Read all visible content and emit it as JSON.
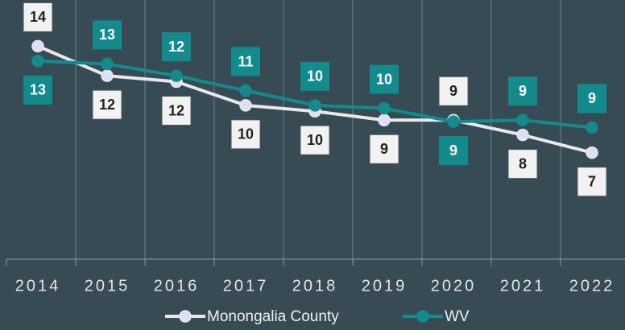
{
  "chart_data": {
    "type": "line",
    "categories": [
      "2014",
      "2015",
      "2016",
      "2017",
      "2018",
      "2019",
      "2020",
      "2021",
      "2022"
    ],
    "series": [
      {
        "name": "Monongalia County",
        "color": "#e8e8e8",
        "marker_color": "#dcdff5",
        "values": [
          14.4,
          12.4,
          12.0,
          10.4,
          10.0,
          9.4,
          9.4,
          8.4,
          7.2
        ],
        "value_labels": [
          "14",
          "12",
          "12",
          "10",
          "10",
          "9",
          "9",
          "8",
          "7"
        ]
      },
      {
        "name": "WV",
        "color": "#138a8c",
        "marker_color": "#138a8c",
        "values": [
          13.4,
          13.2,
          12.4,
          11.4,
          10.4,
          10.2,
          9.3,
          9.4,
          8.9
        ],
        "value_labels": [
          "13",
          "13",
          "12",
          "11",
          "10",
          "10",
          "9",
          "9",
          "9"
        ]
      }
    ],
    "ylim": [
      0,
      16
    ],
    "grid": true,
    "legend": "bottom"
  }
}
